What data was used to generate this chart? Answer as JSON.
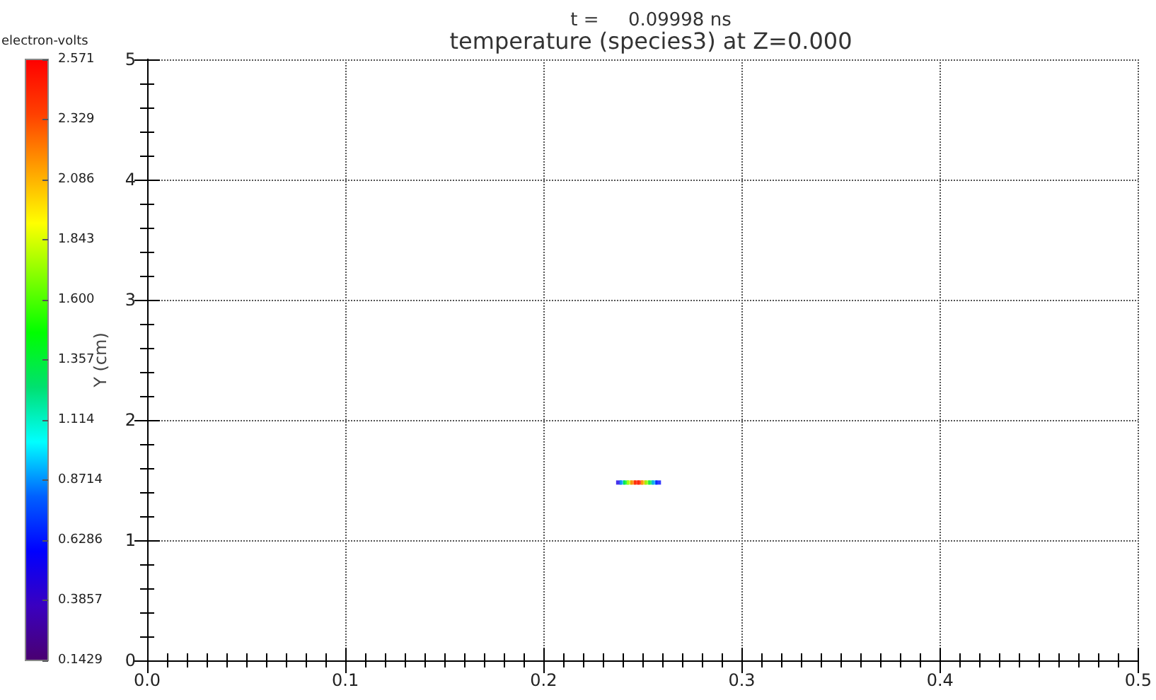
{
  "chart_data": {
    "type": "scatter",
    "subtitle": "t =     0.09998 ns",
    "title": "temperature (species3) at Z=0.000",
    "ylabel": "Y (cm)",
    "clabel": "electron-volts",
    "x": [
      0.238,
      0.2398,
      0.2416,
      0.2434,
      0.2452,
      0.247,
      0.2488,
      0.2506,
      0.2524,
      0.2542,
      0.256,
      0.2578
    ],
    "values": [
      1.48,
      1.48,
      1.48,
      1.48,
      1.48,
      1.48,
      1.48,
      1.48,
      1.48,
      1.48,
      1.48,
      1.48
    ],
    "cvalues": [
      0.5,
      0.9,
      1.4,
      1.8,
      2.2,
      2.5,
      2.45,
      2.1,
      1.7,
      1.3,
      0.9,
      0.6
    ],
    "marker": "square",
    "xlim": [
      0,
      0.5
    ],
    "xticks": [
      {
        "value": 0,
        "label": "0.0"
      },
      {
        "value": 0.1,
        "label": "0.1"
      },
      {
        "value": 0.2,
        "label": "0.2"
      },
      {
        "value": 0.3,
        "label": "0.3"
      },
      {
        "value": 0.4,
        "label": "0.4"
      },
      {
        "value": 0.5,
        "label": "0.5"
      }
    ],
    "ylim": [
      0,
      5
    ],
    "yticks": [
      0,
      1,
      2,
      3,
      4,
      5
    ],
    "clim": [
      0.1429,
      2.571
    ],
    "cticks": [
      {
        "value": 0.1429,
        "label": "0.1429"
      },
      {
        "value": 0.3857,
        "label": "0.3857"
      },
      {
        "value": 0.6286,
        "label": "0.6286"
      },
      {
        "value": 0.8714,
        "label": "0.8714"
      },
      {
        "value": 1.114,
        "label": "1.114"
      },
      {
        "value": 1.357,
        "label": "1.357"
      },
      {
        "value": 1.6,
        "label": "1.600"
      },
      {
        "value": 1.843,
        "label": "1.843"
      },
      {
        "value": 2.086,
        "label": "2.086"
      },
      {
        "value": 2.329,
        "label": "2.329"
      },
      {
        "value": 2.571,
        "label": "2.571"
      }
    ],
    "grid": true
  }
}
